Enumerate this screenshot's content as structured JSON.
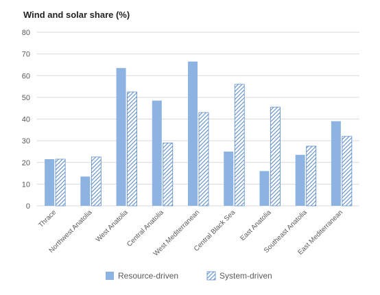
{
  "chart_data": {
    "type": "bar",
    "title": "Wind and solar share (%)",
    "xlabel": "",
    "ylabel": "",
    "ylim": [
      0,
      80
    ],
    "yticks": [
      0,
      10,
      20,
      30,
      40,
      50,
      60,
      70,
      80
    ],
    "grid": true,
    "legend_position": "bottom",
    "categories": [
      "Thrace",
      "Northwest Anatolia",
      "West Anatolia",
      "Central Anatolia",
      "West Mediterranean",
      "Central Black Sea",
      "East Anatolia",
      "Southeast Anatolia",
      "East Mediterranean"
    ],
    "series": [
      {
        "name": "Resource-driven",
        "pattern": "solid",
        "color": "#8db3e2",
        "values": [
          21.5,
          13.5,
          63.5,
          48.5,
          66.5,
          25,
          16,
          23.5,
          39
        ]
      },
      {
        "name": "System-driven",
        "pattern": "hatched",
        "color": "#5b8cc8",
        "values": [
          21.5,
          22.5,
          52.5,
          29,
          43,
          56,
          45.5,
          27.5,
          32
        ]
      }
    ]
  },
  "colors": {
    "grid": "#d9d9d9",
    "axis_text": "#595959",
    "hatch_background": "#ffffff"
  }
}
